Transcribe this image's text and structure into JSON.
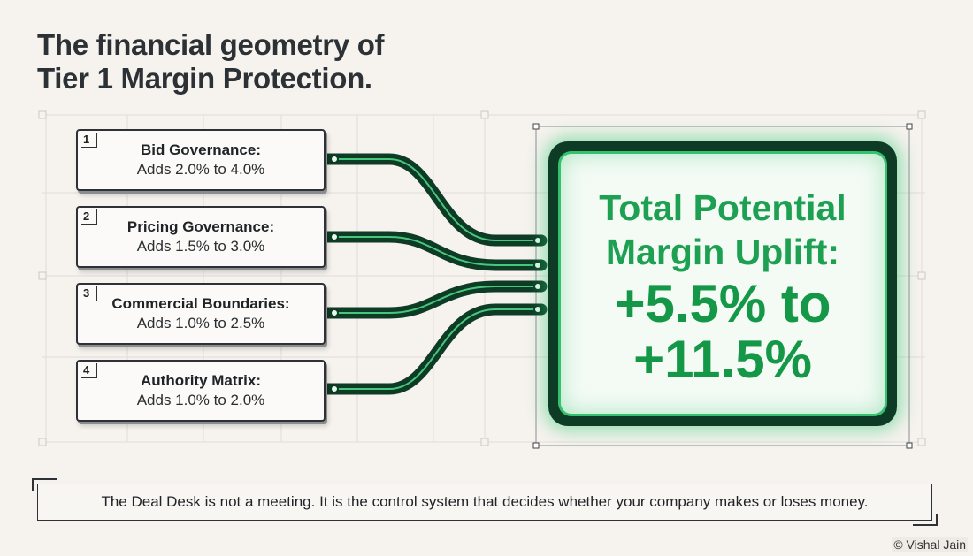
{
  "title": {
    "line1": "The financial geometry of",
    "line2": "Tier 1 Margin Protection."
  },
  "sources": [
    {
      "number": "1",
      "label": "Bid Governance:",
      "range": "Adds 2.0% to 4.0%",
      "low": 2.0,
      "high": 4.0
    },
    {
      "number": "2",
      "label": "Pricing Governance:",
      "range": "Adds 1.5% to 3.0%",
      "low": 1.5,
      "high": 3.0
    },
    {
      "number": "3",
      "label": "Commercial Boundaries:",
      "range": "Adds 1.0% to 2.5%",
      "low": 1.0,
      "high": 2.5
    },
    {
      "number": "4",
      "label": "Authority Matrix:",
      "range": "Adds 1.0% to 2.0%",
      "low": 1.0,
      "high": 2.0
    }
  ],
  "total": {
    "heading_line1": "Total Potential",
    "heading_line2": "Margin Uplift:",
    "value_line1": "+5.5% to",
    "value_line2": "+11.5%"
  },
  "footer": {
    "statement": "The Deal Desk is not a meeting. It is the control system that decides whether your company makes or loses money."
  },
  "credit": "© Vishal Jain",
  "colors": {
    "background": "#f6f2ee",
    "trace_dark": "#0e3b26",
    "trace_glow": "#35c26f",
    "accent_green": "#1da052",
    "card_border": "#2e3236"
  }
}
